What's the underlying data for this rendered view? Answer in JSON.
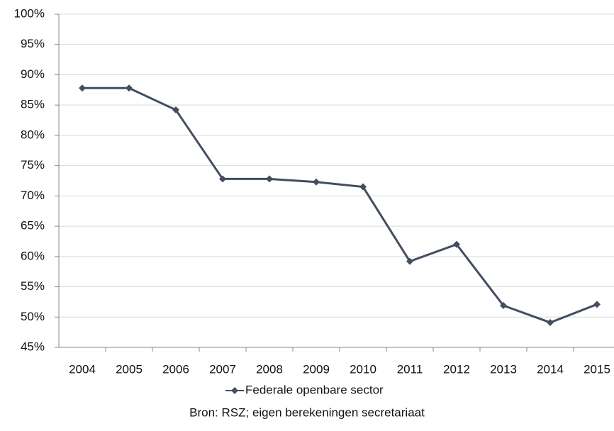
{
  "chart_data": {
    "type": "line",
    "categories": [
      "2004",
      "2005",
      "2006",
      "2007",
      "2008",
      "2009",
      "2010",
      "2011",
      "2012",
      "2013",
      "2014",
      "2015"
    ],
    "series": [
      {
        "name": "Federale openbare sector",
        "color": "#434e60",
        "values": [
          87.8,
          87.8,
          84.2,
          72.8,
          72.8,
          72.3,
          71.5,
          59.2,
          62.0,
          51.9,
          49.1,
          52.1
        ]
      }
    ],
    "ylim": [
      45,
      100
    ],
    "yticks": [
      {
        "value": 45,
        "label": "45%"
      },
      {
        "value": 50,
        "label": "50%"
      },
      {
        "value": 55,
        "label": "55%"
      },
      {
        "value": 60,
        "label": "60%"
      },
      {
        "value": 65,
        "label": "65%"
      },
      {
        "value": 70,
        "label": "70%"
      },
      {
        "value": 75,
        "label": "75%"
      },
      {
        "value": 80,
        "label": "80%"
      },
      {
        "value": 85,
        "label": "85%"
      },
      {
        "value": 90,
        "label": "90%"
      },
      {
        "value": 95,
        "label": "95%"
      },
      {
        "value": 100,
        "label": "100%"
      }
    ],
    "grid": true,
    "legend": "bottom",
    "source": "Bron: RSZ; eigen berekeningen secretariaat"
  }
}
